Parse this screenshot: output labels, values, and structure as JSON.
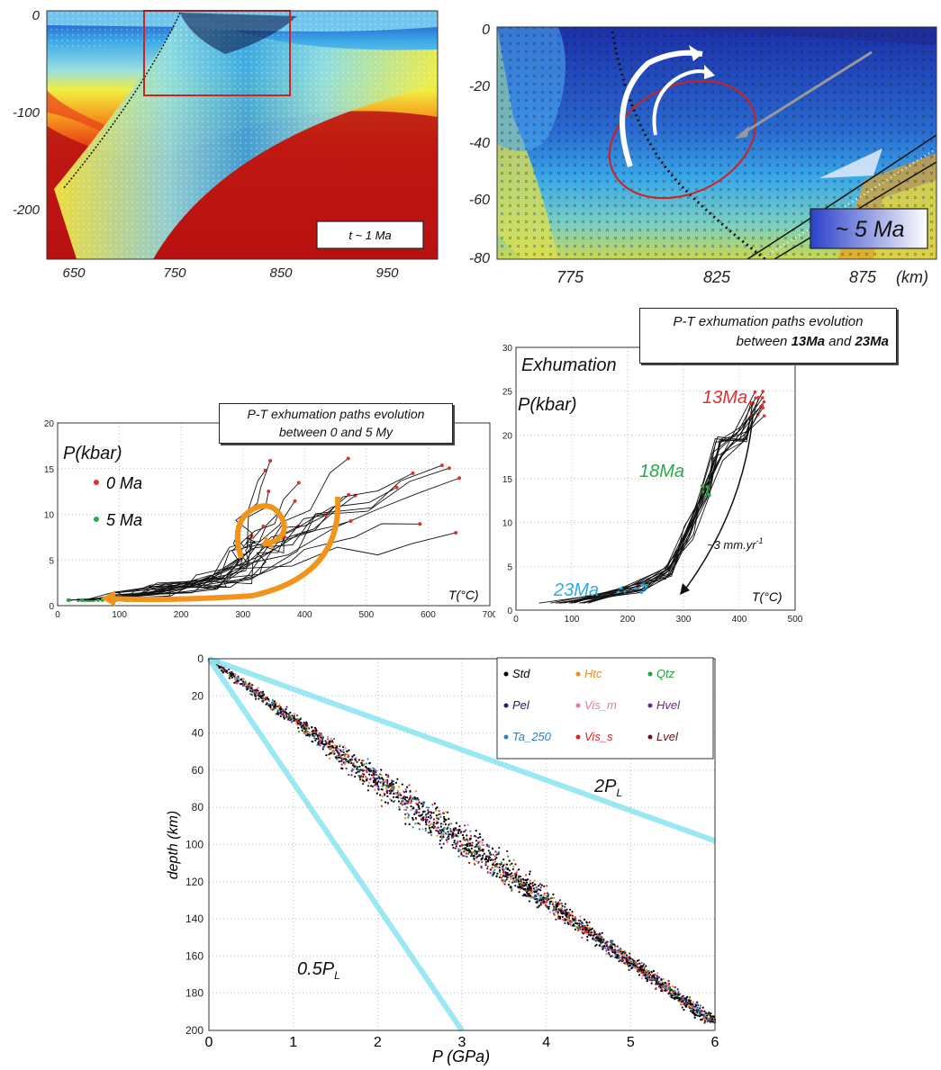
{
  "panel_a": {
    "time_label": "t ~ 1 Ma",
    "x_ticks": [
      "650",
      "750",
      "850",
      "950"
    ],
    "y_ticks": [
      "0",
      "-100",
      "-200"
    ]
  },
  "panel_b": {
    "time_label": "~ 5 Ma",
    "x_ticks": [
      "775",
      "825",
      "875"
    ],
    "x_unit": "(km)",
    "y_ticks": [
      "0",
      "-20",
      "-40",
      "-60",
      "-80"
    ]
  },
  "panel_c": {
    "callout_line1": "P-T exhumation paths evolution",
    "callout_line2": "between 0 and 5 My",
    "ylabel": "P(kbar)",
    "xlabel": "T(°C)",
    "legend": [
      {
        "label": "0 Ma",
        "color": "#e03030"
      },
      {
        "label": "5 Ma",
        "color": "#2aa84a"
      }
    ],
    "x_ticks": [
      "0",
      "100",
      "200",
      "300",
      "400",
      "500",
      "600",
      "700"
    ],
    "y_ticks": [
      "0",
      "5",
      "10",
      "15",
      "20"
    ]
  },
  "panel_d": {
    "callout_line1": "P-T exhumation paths evolution",
    "callout_line2a": "between ",
    "callout_b1": "13Ma",
    "callout_line2b": " and ",
    "callout_b2": "23Ma",
    "title": "Exhumation",
    "ylabel": "P(kbar)",
    "xlabel": "T(°C)",
    "rate_label": "~3 mm.yr",
    "rate_exp": "-1",
    "labels": [
      {
        "text": "13Ma",
        "color": "#e03030"
      },
      {
        "text": "18Ma",
        "color": "#2aa84a"
      },
      {
        "text": "23Ma",
        "color": "#2aaee0"
      }
    ],
    "x_ticks": [
      "0",
      "100",
      "200",
      "300",
      "400",
      "500"
    ],
    "y_ticks": [
      "0",
      "5",
      "10",
      "15",
      "20",
      "25",
      "30"
    ]
  },
  "chart_data": {
    "type": "scatter",
    "xlabel": "P (GPa)",
    "ylabel": "depth (km)",
    "xlim": [
      0,
      6
    ],
    "ylim": [
      0,
      200
    ],
    "y_inverted": true,
    "grid": true,
    "legend_position": "top-right",
    "x_ticks": [
      "0",
      "1",
      "2",
      "3",
      "4",
      "5",
      "6"
    ],
    "y_ticks": [
      "0",
      "20",
      "40",
      "60",
      "80",
      "100",
      "120",
      "140",
      "160",
      "180",
      "200"
    ],
    "series": [
      {
        "name": "Std",
        "color": "#000000"
      },
      {
        "name": "Htc",
        "color": "#f08a1c"
      },
      {
        "name": "Qtz",
        "color": "#1fa03c"
      },
      {
        "name": "Pel",
        "color": "#202070"
      },
      {
        "name": "Vis_m",
        "color": "#e878a0"
      },
      {
        "name": "Hvel",
        "color": "#6a2a8a"
      },
      {
        "name": "Ta_250",
        "color": "#2f7fc0"
      },
      {
        "name": "Vis_s",
        "color": "#e02020"
      },
      {
        "name": "Lvel",
        "color": "#6a1020"
      }
    ],
    "trend_line": {
      "x": [
        0,
        6
      ],
      "y": [
        0,
        196
      ]
    },
    "reference_lines": [
      {
        "label": "2P",
        "sub": "L",
        "x": [
          0,
          6
        ],
        "y": [
          0,
          98
        ],
        "color": "#8fe6f3"
      },
      {
        "label": "0.5P",
        "sub": "L",
        "x": [
          0,
          3
        ],
        "y": [
          0,
          200
        ],
        "color": "#8fe6f3"
      }
    ]
  }
}
